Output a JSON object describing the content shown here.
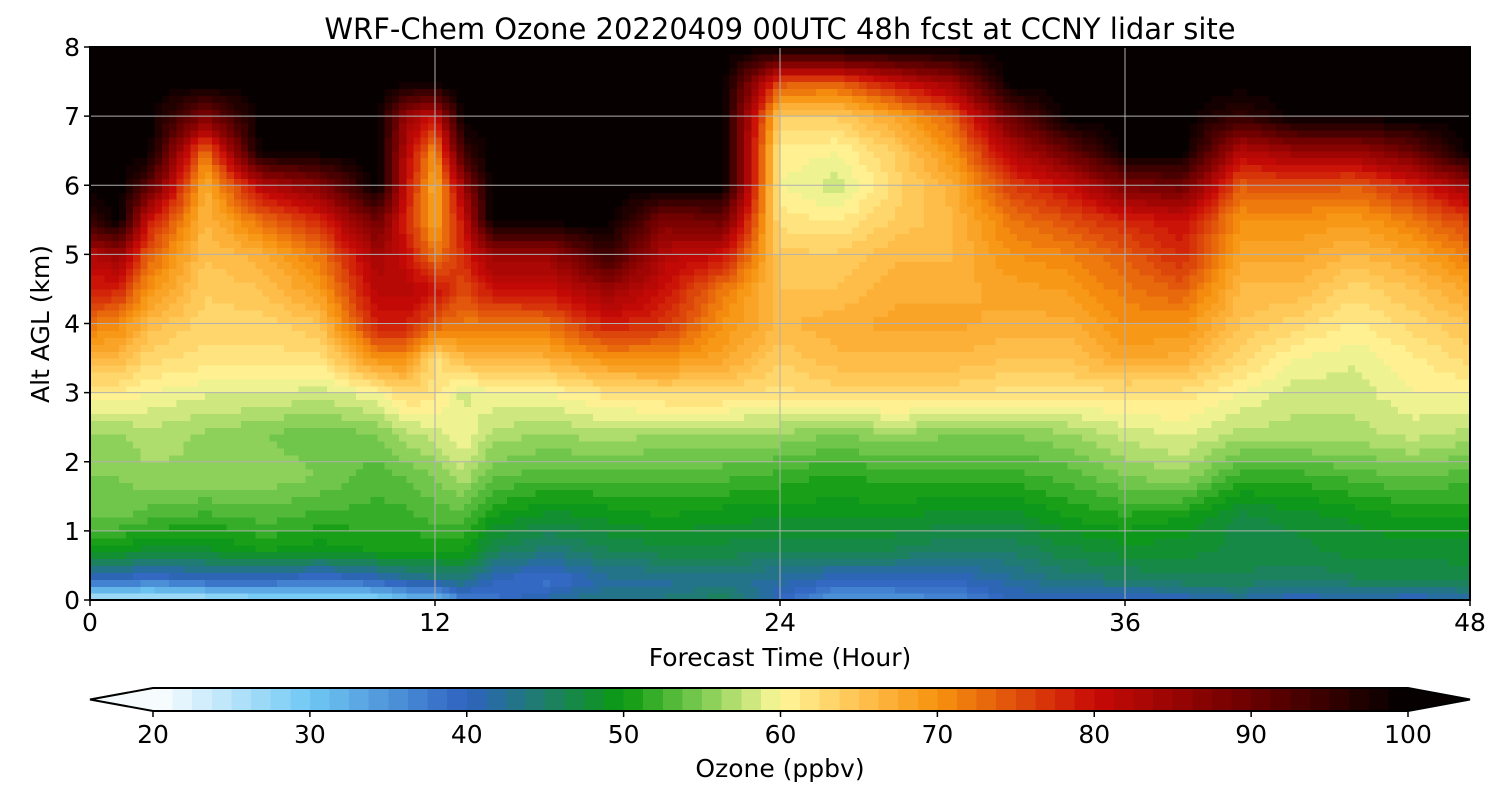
{
  "chart_data": {
    "type": "heatmap",
    "title": "WRF-Chem Ozone  20220409 00UTC 48h fcst at CCNY lidar site",
    "xlabel": "Forecast Time (Hour)",
    "ylabel": "Alt AGL (km)",
    "xlim": [
      0,
      48
    ],
    "ylim": [
      0,
      8
    ],
    "x_ticks": [
      "0",
      "12",
      "24",
      "36",
      "48"
    ],
    "y_ticks": [
      "0",
      "1",
      "2",
      "3",
      "4",
      "5",
      "6",
      "7",
      "8"
    ],
    "grid": true,
    "colorbar": {
      "label": "Ozone  (ppbv)",
      "range": [
        20,
        100
      ],
      "extend": "both",
      "ticks": [
        "20",
        "30",
        "40",
        "50",
        "60",
        "70",
        "80",
        "90",
        "100"
      ],
      "stops": [
        {
          "value": 20,
          "color": "#ffffff"
        },
        {
          "value": 30,
          "color": "#6fc8f4"
        },
        {
          "value": 40,
          "color": "#2f62c0"
        },
        {
          "value": 50,
          "color": "#0b9a10"
        },
        {
          "value": 55,
          "color": "#7dcc52"
        },
        {
          "value": 60,
          "color": "#fff79a"
        },
        {
          "value": 65,
          "color": "#ffc250"
        },
        {
          "value": 70,
          "color": "#f7920f"
        },
        {
          "value": 80,
          "color": "#c80a06"
        },
        {
          "value": 90,
          "color": "#6a0000"
        },
        {
          "value": 100,
          "color": "#000000"
        }
      ]
    },
    "profile_hours": [
      0,
      1,
      2,
      4,
      6,
      8,
      10,
      11,
      12,
      13,
      14,
      16,
      18,
      20,
      22,
      24,
      26,
      28,
      30,
      32,
      34,
      36,
      38,
      40,
      42,
      44,
      46,
      48
    ],
    "profile_altitudes_km": [
      0,
      0.3,
      0.7,
      1.2,
      1.8,
      2.4,
      3.0,
      3.5,
      4.0,
      4.5,
      5.0,
      5.5,
      6.0,
      6.5,
      7.0,
      7.5,
      8.0
    ],
    "ozone_ppbv_by_hour": [
      [
        24,
        40,
        49,
        54,
        55,
        56,
        61,
        66,
        72,
        79,
        82,
        95,
        100,
        100,
        100,
        100,
        100
      ],
      [
        25,
        40,
        49,
        54,
        55,
        56,
        61,
        66,
        71,
        78,
        85,
        100,
        100,
        100,
        100,
        100,
        100
      ],
      [
        24,
        38,
        48,
        53,
        56,
        57,
        60,
        63,
        66,
        70,
        74,
        80,
        92,
        100,
        100,
        100,
        100
      ],
      [
        25,
        40,
        48,
        52,
        56,
        56,
        59,
        62,
        63,
        64,
        65,
        66,
        67,
        72,
        88,
        100,
        100
      ],
      [
        27,
        40,
        50,
        53,
        56,
        55,
        59,
        62,
        63,
        65,
        67,
        73,
        82,
        100,
        100,
        100,
        100
      ],
      [
        27,
        38,
        49,
        52,
        55,
        54,
        58,
        62,
        65,
        69,
        72,
        78,
        87,
        100,
        100,
        100,
        100
      ],
      [
        28,
        40,
        50,
        52,
        53,
        55,
        60,
        70,
        79,
        82,
        84,
        90,
        100,
        100,
        100,
        100,
        100
      ],
      [
        31,
        42,
        50,
        52,
        54,
        57,
        63,
        70,
        79,
        82,
        80,
        78,
        80,
        82,
        85,
        100,
        100
      ],
      [
        31,
        43,
        50,
        53,
        55,
        58,
        62,
        62,
        74,
        80,
        72,
        68,
        67,
        70,
        80,
        100,
        100
      ],
      [
        37,
        44,
        50,
        53,
        57,
        60,
        58,
        66,
        72,
        75,
        78,
        80,
        85,
        95,
        100,
        100,
        100
      ],
      [
        38,
        40,
        46,
        50,
        54,
        57,
        60,
        66,
        72,
        80,
        85,
        100,
        100,
        100,
        100,
        100,
        100
      ],
      [
        42,
        38,
        44,
        48,
        53,
        56,
        60,
        67,
        73,
        80,
        85,
        100,
        100,
        100,
        100,
        100,
        100
      ],
      [
        44,
        42,
        46,
        49,
        53,
        57,
        62,
        70,
        79,
        85,
        95,
        100,
        100,
        100,
        100,
        100,
        100
      ],
      [
        44,
        42,
        47,
        50,
        53,
        56,
        63,
        70,
        77,
        80,
        82,
        88,
        100,
        100,
        100,
        100,
        100
      ],
      [
        46,
        43,
        47,
        49,
        53,
        56,
        63,
        68,
        70,
        72,
        80,
        90,
        100,
        100,
        100,
        100,
        100
      ],
      [
        40,
        42,
        46,
        49,
        52,
        56,
        62,
        64,
        66,
        65,
        64,
        62,
        60,
        61,
        64,
        75,
        100
      ],
      [
        34,
        40,
        46,
        49,
        51,
        55,
        63,
        66,
        67,
        65,
        64,
        61,
        58,
        60,
        64,
        74,
        100
      ],
      [
        35,
        40,
        46,
        49,
        52,
        56,
        63,
        66,
        68,
        67,
        66,
        64,
        63,
        64,
        68,
        80,
        100
      ],
      [
        36,
        40,
        45,
        48,
        52,
        55,
        63,
        66,
        68,
        67,
        66,
        66,
        67,
        70,
        74,
        85,
        100
      ],
      [
        40,
        42,
        45,
        48,
        52,
        55,
        62,
        65,
        67,
        68,
        70,
        72,
        76,
        82,
        90,
        100,
        100
      ],
      [
        40,
        44,
        47,
        50,
        53,
        56,
        62,
        65,
        67,
        69,
        71,
        75,
        80,
        90,
        100,
        100,
        100
      ],
      [
        39,
        45,
        48,
        51,
        55,
        58,
        62,
        68,
        70,
        72,
        74,
        78,
        88,
        100,
        100,
        100,
        100
      ],
      [
        40,
        46,
        48,
        50,
        56,
        59,
        62,
        67,
        70,
        74,
        78,
        80,
        90,
        100,
        100,
        100,
        100
      ],
      [
        42,
        46,
        47,
        47,
        52,
        57,
        60,
        63,
        65,
        66,
        68,
        70,
        74,
        82,
        95,
        100,
        100
      ],
      [
        40,
        45,
        47,
        48,
        52,
        57,
        58,
        60,
        63,
        66,
        68,
        70,
        75,
        85,
        100,
        100,
        100
      ],
      [
        41,
        46,
        48,
        49,
        53,
        57,
        58,
        59,
        61,
        63,
        66,
        69,
        74,
        85,
        100,
        100,
        100
      ],
      [
        40,
        46,
        48,
        50,
        54,
        58,
        60,
        61,
        63,
        65,
        68,
        72,
        78,
        90,
        100,
        100,
        100
      ],
      [
        41,
        47,
        48,
        50,
        53,
        57,
        60,
        63,
        65,
        68,
        72,
        76,
        85,
        100,
        100,
        100,
        100
      ]
    ]
  }
}
